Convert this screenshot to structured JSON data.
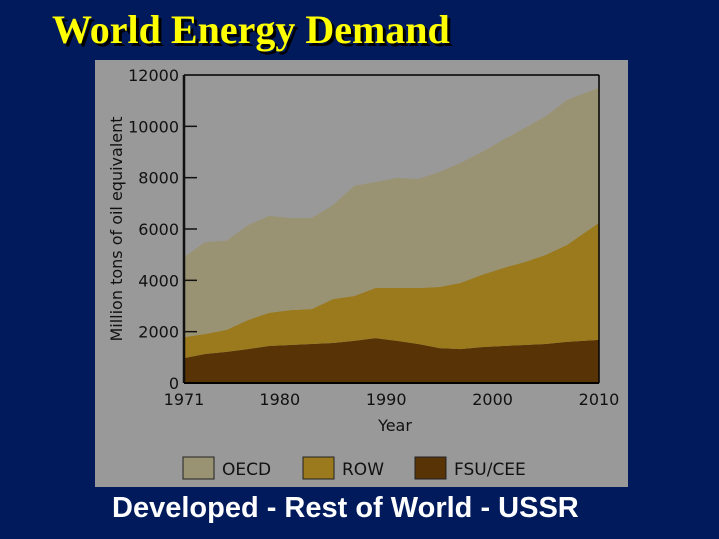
{
  "slide": {
    "title": "World Energy Demand",
    "subtitle": "Developed - Rest of World - USSR"
  },
  "colors": {
    "background": "#001a5c",
    "title": "#ffff00",
    "panel": "#999999",
    "OECD": "#9a9373",
    "ROW": "#9a7a1c",
    "FSU/CEE": "#573306"
  },
  "chart_data": {
    "type": "area",
    "stacked": true,
    "title": "",
    "xlabel": "Year",
    "ylabel": "Million tons of oil equivalent",
    "xlim": [
      1971,
      2010
    ],
    "ylim": [
      0,
      12000
    ],
    "x_ticks": [
      1971,
      1980,
      1990,
      2000,
      2010
    ],
    "y_ticks": [
      0,
      2000,
      4000,
      6000,
      8000,
      10000,
      12000
    ],
    "grid": false,
    "legend_position": "bottom",
    "x": [
      1971,
      1973,
      1975,
      1977,
      1979,
      1981,
      1983,
      1985,
      1987,
      1989,
      1991,
      1993,
      1995,
      1997,
      1999,
      2001,
      2003,
      2005,
      2007,
      2010
    ],
    "series": [
      {
        "name": "FSU/CEE",
        "values": [
          970,
          1130,
          1210,
          1320,
          1440,
          1480,
          1520,
          1560,
          1640,
          1750,
          1640,
          1520,
          1360,
          1320,
          1400,
          1440,
          1480,
          1520,
          1600,
          1680
        ]
      },
      {
        "name": "ROW",
        "values": [
          820,
          780,
          860,
          1130,
          1290,
          1360,
          1360,
          1710,
          1750,
          1950,
          2060,
          2180,
          2380,
          2580,
          2810,
          3040,
          3230,
          3470,
          3780,
          4560
        ]
      },
      {
        "name": "OECD",
        "values": [
          3120,
          3580,
          3470,
          3700,
          3780,
          3590,
          3550,
          3660,
          4290,
          4130,
          4290,
          4250,
          4480,
          4680,
          4790,
          4990,
          5220,
          5410,
          5650,
          5260
        ]
      }
    ]
  }
}
